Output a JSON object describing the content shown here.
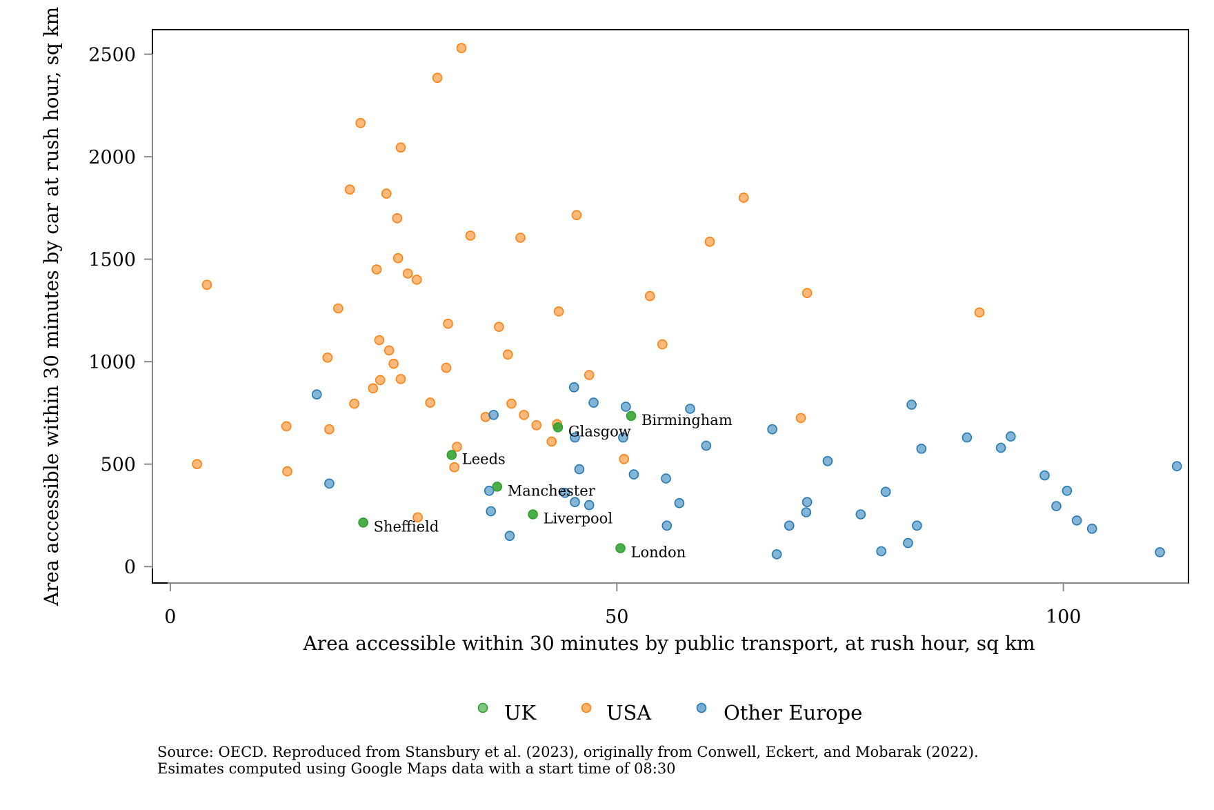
{
  "chart_data": {
    "type": "scatter",
    "xlabel": "Area accessible within 30 minutes by public transport, at rush hour, sq km",
    "ylabel": "Area accessible within 30 minutes by car at rush hour, sq km",
    "xlim": [
      -2,
      114
    ],
    "ylim": [
      -80,
      2620
    ],
    "xticks": [
      "0",
      "50",
      "100"
    ],
    "yticks": [
      "0",
      "500",
      "1000",
      "1500",
      "2000",
      "2500"
    ],
    "grid": false,
    "legend_position": "bottom",
    "series": [
      {
        "name": "UK",
        "color": "#2ca02c",
        "points": [
          {
            "x": 21.6,
            "y": 215,
            "label": "Sheffield"
          },
          {
            "x": 31.5,
            "y": 545,
            "label": "Leeds"
          },
          {
            "x": 36.6,
            "y": 390,
            "label": "Manchester"
          },
          {
            "x": 40.6,
            "y": 255,
            "label": "Liverpool"
          },
          {
            "x": 43.4,
            "y": 680,
            "label": "Glasgow"
          },
          {
            "x": 50.4,
            "y": 90,
            "label": "London"
          },
          {
            "x": 51.6,
            "y": 735,
            "label": "Birmingham"
          }
        ]
      },
      {
        "name": "USA",
        "color": "#ff7f0e",
        "points": [
          {
            "x": 3.0,
            "y": 500
          },
          {
            "x": 4.1,
            "y": 1375
          },
          {
            "x": 13.0,
            "y": 685
          },
          {
            "x": 13.1,
            "y": 465
          },
          {
            "x": 17.6,
            "y": 1020
          },
          {
            "x": 17.8,
            "y": 670
          },
          {
            "x": 18.8,
            "y": 1260
          },
          {
            "x": 20.1,
            "y": 1840
          },
          {
            "x": 20.6,
            "y": 795
          },
          {
            "x": 21.3,
            "y": 2165
          },
          {
            "x": 22.7,
            "y": 870
          },
          {
            "x": 23.1,
            "y": 1450
          },
          {
            "x": 23.5,
            "y": 910
          },
          {
            "x": 23.4,
            "y": 1105
          },
          {
            "x": 24.2,
            "y": 1820
          },
          {
            "x": 24.5,
            "y": 1055
          },
          {
            "x": 25.0,
            "y": 990
          },
          {
            "x": 25.4,
            "y": 1700
          },
          {
            "x": 25.5,
            "y": 1505
          },
          {
            "x": 25.8,
            "y": 915
          },
          {
            "x": 25.8,
            "y": 2045
          },
          {
            "x": 26.6,
            "y": 1430
          },
          {
            "x": 27.6,
            "y": 1400
          },
          {
            "x": 27.7,
            "y": 240
          },
          {
            "x": 29.1,
            "y": 800
          },
          {
            "x": 29.9,
            "y": 2385
          },
          {
            "x": 30.9,
            "y": 970
          },
          {
            "x": 31.1,
            "y": 1185
          },
          {
            "x": 31.8,
            "y": 485
          },
          {
            "x": 32.1,
            "y": 585
          },
          {
            "x": 32.6,
            "y": 2530
          },
          {
            "x": 33.6,
            "y": 1615
          },
          {
            "x": 35.3,
            "y": 730
          },
          {
            "x": 36.8,
            "y": 1170
          },
          {
            "x": 37.8,
            "y": 1035
          },
          {
            "x": 38.2,
            "y": 795
          },
          {
            "x": 39.2,
            "y": 1605
          },
          {
            "x": 39.6,
            "y": 740
          },
          {
            "x": 41.0,
            "y": 690
          },
          {
            "x": 42.7,
            "y": 610
          },
          {
            "x": 43.3,
            "y": 695
          },
          {
            "x": 43.5,
            "y": 1245
          },
          {
            "x": 45.5,
            "y": 1715
          },
          {
            "x": 46.9,
            "y": 935
          },
          {
            "x": 50.8,
            "y": 525
          },
          {
            "x": 53.7,
            "y": 1320
          },
          {
            "x": 55.1,
            "y": 1085
          },
          {
            "x": 60.4,
            "y": 1585
          },
          {
            "x": 64.2,
            "y": 1800
          },
          {
            "x": 70.6,
            "y": 725
          },
          {
            "x": 71.3,
            "y": 1335
          },
          {
            "x": 90.6,
            "y": 1240
          }
        ]
      },
      {
        "name": "Other Europe",
        "color": "#1f77b4",
        "points": [
          {
            "x": 16.4,
            "y": 840
          },
          {
            "x": 17.8,
            "y": 405
          },
          {
            "x": 35.7,
            "y": 370
          },
          {
            "x": 35.9,
            "y": 270
          },
          {
            "x": 36.2,
            "y": 740
          },
          {
            "x": 38.0,
            "y": 150
          },
          {
            "x": 44.2,
            "y": 360
          },
          {
            "x": 45.2,
            "y": 875
          },
          {
            "x": 45.3,
            "y": 315
          },
          {
            "x": 45.3,
            "y": 630
          },
          {
            "x": 45.8,
            "y": 475
          },
          {
            "x": 46.9,
            "y": 300
          },
          {
            "x": 47.4,
            "y": 800
          },
          {
            "x": 50.7,
            "y": 630
          },
          {
            "x": 51.0,
            "y": 780
          },
          {
            "x": 51.9,
            "y": 450
          },
          {
            "x": 55.5,
            "y": 430
          },
          {
            "x": 55.6,
            "y": 200
          },
          {
            "x": 57.0,
            "y": 310
          },
          {
            "x": 58.2,
            "y": 770
          },
          {
            "x": 60.0,
            "y": 590
          },
          {
            "x": 67.4,
            "y": 670
          },
          {
            "x": 67.9,
            "y": 60
          },
          {
            "x": 69.3,
            "y": 200
          },
          {
            "x": 71.2,
            "y": 265
          },
          {
            "x": 71.3,
            "y": 315
          },
          {
            "x": 73.6,
            "y": 515
          },
          {
            "x": 77.3,
            "y": 255
          },
          {
            "x": 79.6,
            "y": 75
          },
          {
            "x": 80.1,
            "y": 365
          },
          {
            "x": 82.6,
            "y": 115
          },
          {
            "x": 83.0,
            "y": 790
          },
          {
            "x": 83.6,
            "y": 200
          },
          {
            "x": 84.1,
            "y": 575
          },
          {
            "x": 89.2,
            "y": 630
          },
          {
            "x": 93.0,
            "y": 580
          },
          {
            "x": 94.1,
            "y": 635
          },
          {
            "x": 97.9,
            "y": 445
          },
          {
            "x": 99.2,
            "y": 295
          },
          {
            "x": 100.4,
            "y": 370
          },
          {
            "x": 101.5,
            "y": 225
          },
          {
            "x": 103.2,
            "y": 185
          },
          {
            "x": 110.8,
            "y": 70
          },
          {
            "x": 112.7,
            "y": 490
          }
        ]
      }
    ]
  },
  "source_note": [
    "Source: OECD. Reproduced from Stansbury et al. (2023), originally from Conwell, Eckert, and Mobarak (2022).",
    "Esimates computed using Google Maps data with a start time of 08:30"
  ]
}
